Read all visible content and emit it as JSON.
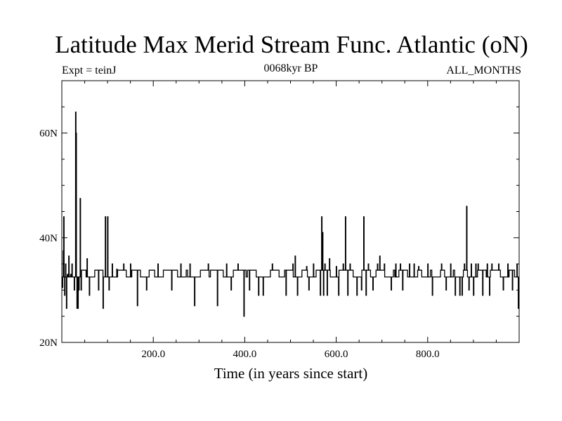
{
  "chart_data": {
    "type": "line",
    "title": "Latitude Max Merid Stream Func. Atlantic (oN)",
    "subtitle_left": "Expt = teinJ",
    "subtitle_center": "0068kyr BP",
    "subtitle_right": "ALL_MONTHS",
    "xlabel": "Time (in years since start)",
    "ylabel": "",
    "xlim": [
      0,
      1000
    ],
    "ylim": [
      20,
      70
    ],
    "x_ticks": [
      200,
      400,
      600,
      800
    ],
    "x_tick_labels": [
      "200.0",
      "400.0",
      "600.0",
      "800.0"
    ],
    "y_ticks": [
      20,
      40,
      60
    ],
    "y_tick_labels": [
      "20N",
      "40N",
      "60N"
    ],
    "grid": false,
    "line_color": "#000000",
    "baseline": 33.8,
    "step": 32.5,
    "excursions": [
      [
        1,
        30.5
      ],
      [
        3,
        37.5
      ],
      [
        4,
        44
      ],
      [
        6,
        29
      ],
      [
        8,
        35
      ],
      [
        10,
        26.5
      ],
      [
        12,
        33
      ],
      [
        15,
        36.5
      ],
      [
        19,
        33
      ],
      [
        22,
        35
      ],
      [
        27,
        30
      ],
      [
        30,
        64
      ],
      [
        31,
        60
      ],
      [
        33,
        26.5
      ],
      [
        35,
        26.5
      ],
      [
        37,
        30
      ],
      [
        40,
        47.5
      ],
      [
        42,
        30
      ],
      [
        55,
        36
      ],
      [
        60,
        29
      ],
      [
        80,
        30
      ],
      [
        90,
        26.5
      ],
      [
        95,
        44
      ],
      [
        100,
        44
      ],
      [
        103,
        30
      ],
      [
        110,
        35
      ],
      [
        120,
        34
      ],
      [
        135,
        35
      ],
      [
        150,
        35
      ],
      [
        165,
        27
      ],
      [
        185,
        30
      ],
      [
        210,
        35
      ],
      [
        240,
        30
      ],
      [
        260,
        35
      ],
      [
        280,
        35
      ],
      [
        290,
        27
      ],
      [
        320,
        35
      ],
      [
        340,
        27
      ],
      [
        360,
        35
      ],
      [
        370,
        30
      ],
      [
        385,
        35
      ],
      [
        398,
        25
      ],
      [
        410,
        30
      ],
      [
        430,
        29
      ],
      [
        440,
        29
      ],
      [
        460,
        35
      ],
      [
        490,
        29
      ],
      [
        505,
        35
      ],
      [
        510,
        36.5
      ],
      [
        515,
        29
      ],
      [
        535,
        34.5
      ],
      [
        540,
        30
      ],
      [
        550,
        35
      ],
      [
        565,
        29
      ],
      [
        568,
        44
      ],
      [
        570,
        41
      ],
      [
        572,
        29
      ],
      [
        575,
        35
      ],
      [
        580,
        29
      ],
      [
        585,
        36
      ],
      [
        600,
        34.5
      ],
      [
        605,
        29
      ],
      [
        615,
        35
      ],
      [
        620,
        44
      ],
      [
        625,
        29
      ],
      [
        630,
        35
      ],
      [
        645,
        29
      ],
      [
        655,
        30
      ],
      [
        660,
        44
      ],
      [
        665,
        29
      ],
      [
        670,
        35
      ],
      [
        680,
        30
      ],
      [
        690,
        35
      ],
      [
        695,
        36.5
      ],
      [
        705,
        35
      ],
      [
        720,
        30
      ],
      [
        730,
        35
      ],
      [
        740,
        35
      ],
      [
        745,
        30
      ],
      [
        760,
        35
      ],
      [
        770,
        35
      ],
      [
        780,
        34.5
      ],
      [
        800,
        35
      ],
      [
        810,
        29
      ],
      [
        830,
        35
      ],
      [
        840,
        30
      ],
      [
        850,
        35
      ],
      [
        860,
        29
      ],
      [
        870,
        29
      ],
      [
        875,
        29
      ],
      [
        880,
        35
      ],
      [
        885,
        46
      ],
      [
        890,
        30
      ],
      [
        895,
        35
      ],
      [
        900,
        29
      ],
      [
        905,
        35
      ],
      [
        910,
        35
      ],
      [
        920,
        29
      ],
      [
        930,
        35
      ],
      [
        935,
        29
      ],
      [
        940,
        35
      ],
      [
        955,
        35
      ],
      [
        965,
        30
      ],
      [
        975,
        35
      ],
      [
        985,
        30
      ],
      [
        995,
        35
      ],
      [
        998,
        26.5
      ]
    ]
  }
}
